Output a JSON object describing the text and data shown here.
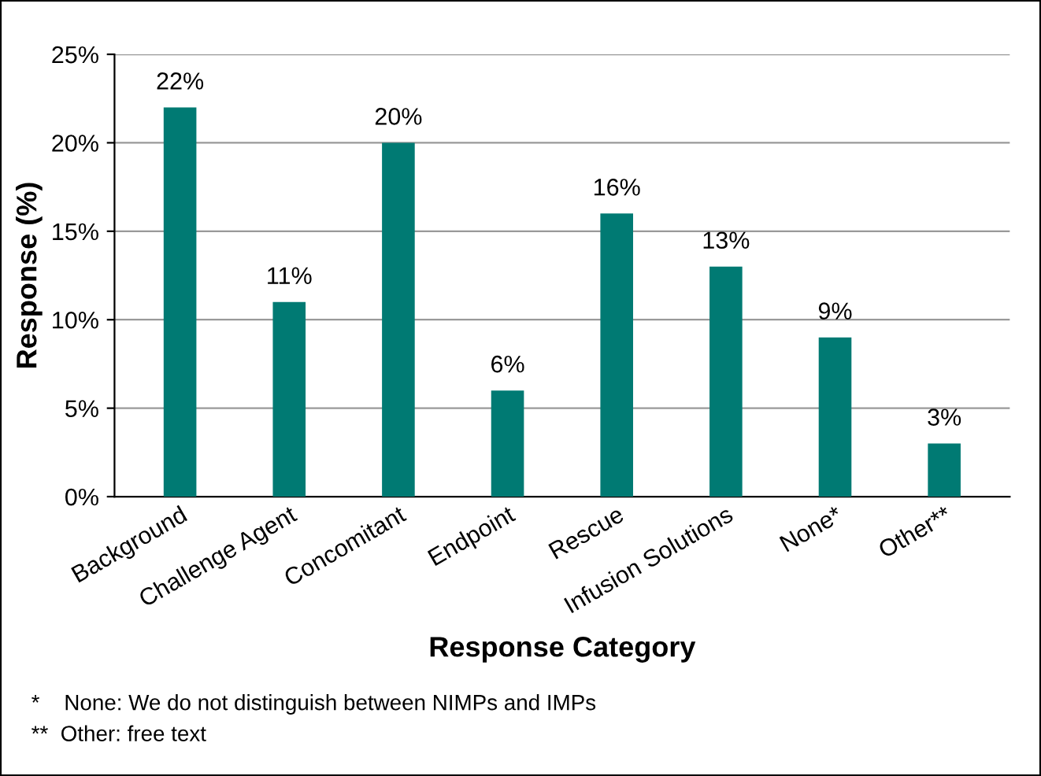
{
  "chart_data": {
    "type": "bar",
    "xlabel": "Response Category",
    "ylabel": "Response (%)",
    "categories": [
      "Background",
      "Challenge Agent",
      "Concomitant",
      "Endpoint",
      "Rescue",
      "Infusion Solutions",
      "None*",
      "Other**"
    ],
    "values": [
      22,
      11,
      20,
      6,
      16,
      13,
      9,
      3
    ],
    "value_labels": [
      "22%",
      "11%",
      "20%",
      "6%",
      "16%",
      "13%",
      "9%",
      "3%"
    ],
    "color": "#007a73",
    "ylim": [
      0,
      25
    ],
    "yticks": [
      {
        "value": 0,
        "label": "0%"
      },
      {
        "value": 5,
        "label": "5%"
      },
      {
        "value": 10,
        "label": "10%"
      },
      {
        "value": 15,
        "label": "15%"
      },
      {
        "value": 20,
        "label": "20%"
      },
      {
        "value": 25,
        "label": "25%"
      }
    ],
    "grid": "y",
    "legend": false,
    "annotations": [
      "*    None: We do not distinguish between NIMPs and IMPs",
      "**  Other: free text"
    ]
  }
}
